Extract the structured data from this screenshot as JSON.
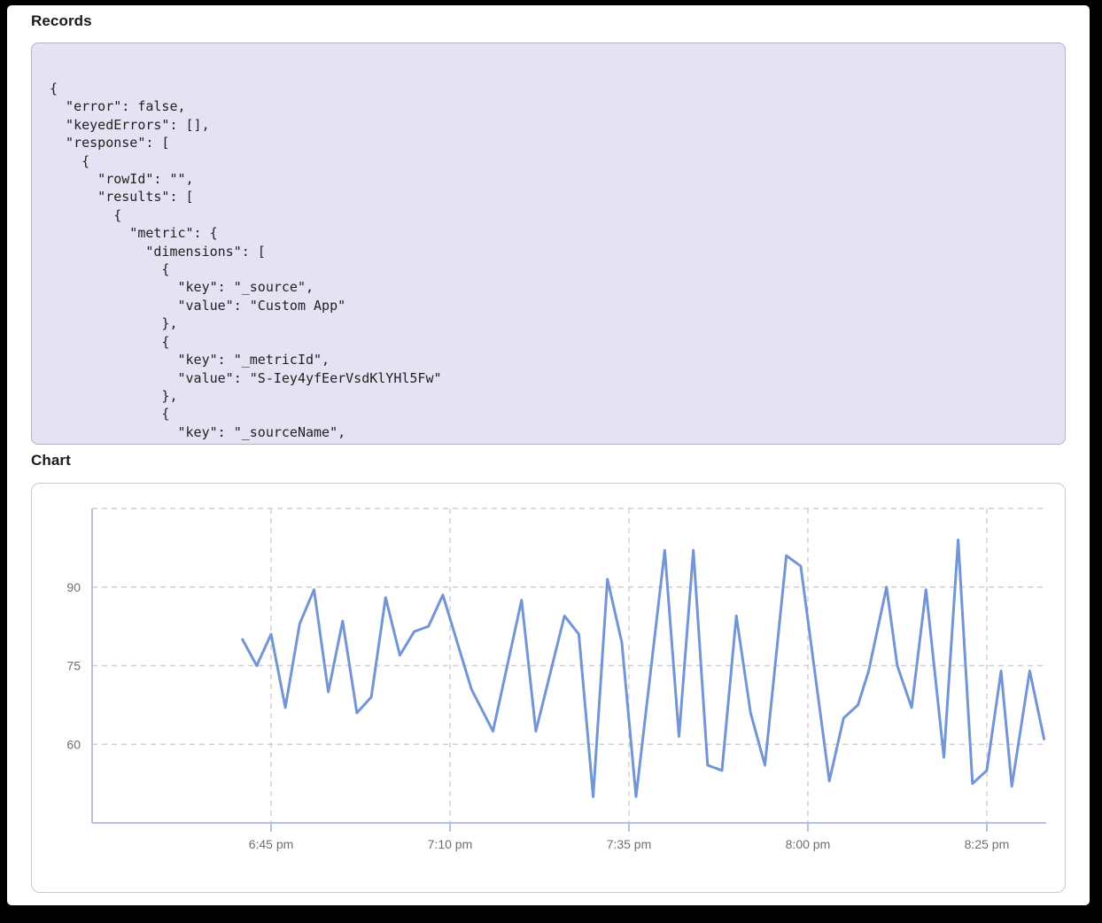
{
  "records": {
    "title": "Records",
    "code_lines": [
      "{",
      "  \"error\": false,",
      "  \"keyedErrors\": [],",
      "  \"response\": [",
      "    {",
      "      \"rowId\": \"\",",
      "      \"results\": [",
      "        {",
      "          \"metric\": {",
      "            \"dimensions\": [",
      "              {",
      "                \"key\": \"_source\",",
      "                \"value\": \"Custom App\"",
      "              },",
      "              {",
      "                \"key\": \"_metricId\",",
      "                \"value\": \"S-Iey4yfEerVsdKlYHl5Fw\"",
      "              },",
      "              {",
      "                \"key\": \"_sourceName\","
    ]
  },
  "chart": {
    "title": "Chart"
  },
  "chart_data": {
    "type": "line",
    "title": "",
    "xlabel": "",
    "ylabel": "",
    "x_unit": "minutes after 6:00 pm",
    "x": [
      41,
      43,
      45,
      47,
      49,
      51,
      53,
      55,
      57,
      59,
      61,
      63,
      65,
      67,
      69,
      73,
      76,
      80,
      82,
      86,
      88,
      90,
      92,
      94,
      96,
      100,
      102,
      104,
      106,
      108,
      110,
      112,
      114,
      117,
      119,
      123,
      125,
      127,
      128.5,
      131,
      132.5,
      134.5,
      136.5,
      139,
      141,
      143,
      145,
      147,
      148.5,
      151,
      153
    ],
    "values": [
      80,
      75,
      81,
      67,
      83,
      89.5,
      70,
      83.5,
      66,
      69,
      88,
      77,
      81.5,
      82.5,
      88.5,
      70.5,
      62.5,
      87.5,
      62.5,
      84.5,
      81,
      50,
      91.5,
      79.5,
      50,
      97,
      61.5,
      97,
      56,
      55,
      84.5,
      66,
      56,
      96,
      94,
      53,
      65,
      67.5,
      74,
      90,
      75,
      67,
      89.5,
      57.5,
      99,
      52.5,
      55,
      74,
      52,
      74,
      61
    ],
    "x_ticks": [
      {
        "m": 45,
        "label": "6:45 pm"
      },
      {
        "m": 70,
        "label": "7:10 pm"
      },
      {
        "m": 95,
        "label": "7:35 pm"
      },
      {
        "m": 120,
        "label": "8:00 pm"
      },
      {
        "m": 145,
        "label": "8:25 pm"
      }
    ],
    "y_ticks": [
      {
        "v": 60,
        "label": "60"
      },
      {
        "v": 75,
        "label": "75"
      },
      {
        "v": 90,
        "label": "90"
      },
      {
        "v": 105,
        "label": ""
      }
    ],
    "xlim": [
      20,
      153.3
    ],
    "ylim": [
      45,
      105
    ],
    "grid": "dashed",
    "legend": "none",
    "line_color": "#7295d5"
  },
  "colors": {
    "frame": "#000000",
    "page_bg": "#ffffff",
    "code_bg": "#e5e2f3",
    "grid": "#cfcfcf",
    "axis": "#b9c0de",
    "tick_text": "#6f6f6f",
    "heading_text": "#1a1a1a",
    "line": "#7295d5"
  }
}
